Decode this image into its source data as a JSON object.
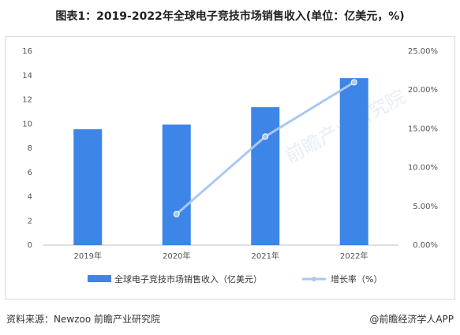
{
  "title": "图表1：2019-2022年全球电子竞技市场销售收入(单位：亿美元，%)",
  "source": "资料来源：Newzoo 前瞻产业研究院",
  "brand": "@前瞻经济学人APP",
  "watermark": "前瞻产业研究院",
  "colors": {
    "bar": "#3d85e6",
    "line": "#a9c8f2",
    "marker": "#a9c8f2"
  },
  "chart_data": {
    "type": "bar",
    "categories": [
      "2019年",
      "2020年",
      "2021年",
      "2022年"
    ],
    "series": [
      {
        "name": "全球电子竞技市场销售收入（亿美元）",
        "type": "bar",
        "axis": "left",
        "values": [
          9.57,
          9.95,
          11.38,
          13.78
        ]
      },
      {
        "name": "增长率（%）",
        "type": "line",
        "axis": "right",
        "values": [
          null,
          4.0,
          14.0,
          21.0
        ]
      }
    ],
    "y_left": {
      "ticks": [
        "0",
        "2",
        "4",
        "6",
        "8",
        "10",
        "12",
        "14",
        "16"
      ],
      "range": [
        0,
        16
      ]
    },
    "y_right": {
      "ticks": [
        "0.00%",
        "5.00%",
        "10.00%",
        "15.00%",
        "20.00%",
        "25.00%"
      ],
      "range": [
        0,
        25
      ]
    },
    "grid": false,
    "legend_position": "bottom"
  }
}
